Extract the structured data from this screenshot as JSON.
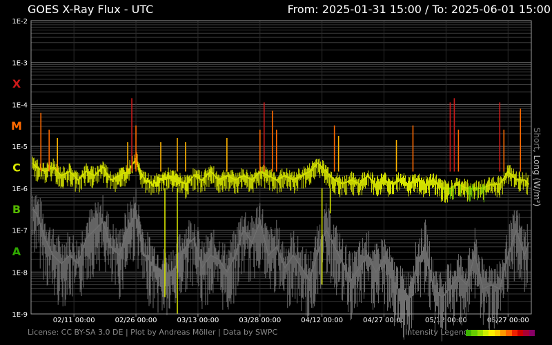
{
  "header": {
    "title": "GOES X-Ray Flux - UTC",
    "range": "From: 2025-01-31 15:00  /  To: 2025-06-01 15:00"
  },
  "right_axis": {
    "short": "Short",
    "rest": ", Long (W/m²)"
  },
  "footer": {
    "license": "License: CC BY-SA 3.0 DE | Plot by Andreas Möller | Data by SWPC",
    "legend_label": "Intensity Legend"
  },
  "legend_colors": [
    "#3cb300",
    "#66cc00",
    "#99dd00",
    "#ccee00",
    "#ffee00",
    "#ffcc00",
    "#ff9900",
    "#ff6600",
    "#ee2200",
    "#cc0000",
    "#aa0033",
    "#880066"
  ],
  "chart_data": {
    "type": "line",
    "title": "GOES X-Ray Flux - UTC",
    "ylabel": "Short, Long (W/m²)",
    "yscale": "log",
    "ylim": [
      1e-09,
      0.01
    ],
    "y_ticks": [
      "1E-9",
      "1E-8",
      "1E-7",
      "1E-6",
      "1E-5",
      "1E-4",
      "1E-3",
      "1E-2"
    ],
    "y_tick_values": [
      -9,
      -8,
      -7,
      -6,
      -5,
      -4,
      -3,
      -2
    ],
    "class_labels": [
      {
        "label": "X",
        "at": -3.5,
        "color": "#cc1a1a"
      },
      {
        "label": "M",
        "at": -4.5,
        "color": "#ff6a00"
      },
      {
        "label": "C",
        "at": -5.5,
        "color": "#d8e600"
      },
      {
        "label": "B",
        "at": -6.5,
        "color": "#55b800"
      },
      {
        "label": "A",
        "at": -7.5,
        "color": "#2fa800"
      }
    ],
    "xlim": [
      "2025-01-31 15:00",
      "2025-06-01 15:00"
    ],
    "x_ticks": [
      {
        "date": "2025-02-11",
        "label": "02/11 00:00"
      },
      {
        "date": "2025-02-26",
        "label": "02/26 00:00"
      },
      {
        "date": "2025-03-13",
        "label": "03/13 00:00"
      },
      {
        "date": "2025-03-28",
        "label": "03/28 00:00"
      },
      {
        "date": "2025-04-12",
        "label": "04/12 00:00"
      },
      {
        "date": "2025-04-27",
        "label": "04/27 00:00"
      },
      {
        "date": "2025-05-12",
        "label": "05/12 00:00"
      },
      {
        "date": "2025-05-27",
        "label": "05/27 00:00"
      }
    ],
    "series": [
      {
        "name": "Long",
        "x": [
          "2025-02-01",
          "2025-02-02",
          "2025-02-04",
          "2025-02-06",
          "2025-02-08",
          "2025-02-10",
          "2025-02-12",
          "2025-02-14",
          "2025-02-16",
          "2025-02-18",
          "2025-02-20",
          "2025-02-22",
          "2025-02-24",
          "2025-02-26",
          "2025-02-28",
          "2025-03-02",
          "2025-03-04",
          "2025-03-06",
          "2025-03-08",
          "2025-03-10",
          "2025-03-12",
          "2025-03-14",
          "2025-03-16",
          "2025-03-18",
          "2025-03-20",
          "2025-03-22",
          "2025-03-24",
          "2025-03-26",
          "2025-03-28",
          "2025-03-30",
          "2025-04-01",
          "2025-04-03",
          "2025-04-05",
          "2025-04-09",
          "2025-04-11",
          "2025-04-13",
          "2025-04-15",
          "2025-04-17",
          "2025-04-19",
          "2025-04-21",
          "2025-04-23",
          "2025-04-25",
          "2025-04-27",
          "2025-04-29",
          "2025-05-01",
          "2025-05-03",
          "2025-05-05",
          "2025-05-07",
          "2025-05-09",
          "2025-05-11",
          "2025-05-13",
          "2025-05-15",
          "2025-05-17",
          "2025-05-19",
          "2025-05-21",
          "2025-05-23",
          "2025-05-25",
          "2025-05-27",
          "2025-05-29",
          "2025-05-31",
          "2025-06-01"
        ],
        "log_y": [
          -5.4,
          -5.5,
          -5.6,
          -5.5,
          -5.7,
          -5.6,
          -5.8,
          -5.6,
          -5.7,
          -5.5,
          -5.8,
          -5.7,
          -5.6,
          -5.3,
          -5.8,
          -5.9,
          -5.8,
          -5.7,
          -5.8,
          -5.9,
          -5.7,
          -5.8,
          -5.6,
          -5.8,
          -5.7,
          -5.8,
          -5.7,
          -5.8,
          -5.6,
          -5.7,
          -5.8,
          -5.7,
          -5.8,
          -5.6,
          -5.4,
          -5.6,
          -5.8,
          -5.9,
          -5.8,
          -5.9,
          -5.7,
          -5.9,
          -5.8,
          -5.9,
          -5.8,
          -5.9,
          -5.8,
          -5.9,
          -5.8,
          -6.0,
          -6.0,
          -5.9,
          -6.0,
          -6.0,
          -6.0,
          -5.9,
          -5.9,
          -5.6,
          -5.8,
          -5.8,
          -5.9
        ]
      },
      {
        "name": "Short",
        "x": [
          "2025-02-01",
          "2025-02-02",
          "2025-02-04",
          "2025-02-06",
          "2025-02-08",
          "2025-02-10",
          "2025-02-12",
          "2025-02-14",
          "2025-02-16",
          "2025-02-18",
          "2025-02-20",
          "2025-02-22",
          "2025-02-24",
          "2025-02-26",
          "2025-02-28",
          "2025-03-02",
          "2025-03-04",
          "2025-03-06",
          "2025-03-08",
          "2025-03-10",
          "2025-03-12",
          "2025-03-14",
          "2025-03-16",
          "2025-03-18",
          "2025-03-20",
          "2025-03-22",
          "2025-03-24",
          "2025-03-26",
          "2025-03-28",
          "2025-03-30",
          "2025-04-01",
          "2025-04-03",
          "2025-04-05",
          "2025-04-09",
          "2025-04-11",
          "2025-04-13",
          "2025-04-15",
          "2025-04-17",
          "2025-04-19",
          "2025-04-21",
          "2025-04-23",
          "2025-04-25",
          "2025-04-27",
          "2025-04-29",
          "2025-05-01",
          "2025-05-03",
          "2025-05-05",
          "2025-05-07",
          "2025-05-09",
          "2025-05-11",
          "2025-05-13",
          "2025-05-15",
          "2025-05-17",
          "2025-05-19",
          "2025-05-21",
          "2025-05-23",
          "2025-05-25",
          "2025-05-27",
          "2025-05-29",
          "2025-05-31",
          "2025-06-01"
        ],
        "log_y": [
          -6.5,
          -6.6,
          -7.2,
          -7.6,
          -7.8,
          -7.6,
          -7.8,
          -7.2,
          -7.0,
          -6.8,
          -7.4,
          -7.6,
          -7.0,
          -6.6,
          -7.6,
          -7.8,
          -8.0,
          -8.1,
          -7.8,
          -7.4,
          -7.2,
          -7.9,
          -7.6,
          -7.7,
          -8.0,
          -7.6,
          -7.0,
          -7.3,
          -6.8,
          -7.6,
          -7.4,
          -7.9,
          -7.6,
          -8.2,
          -7.5,
          -7.0,
          -7.4,
          -7.8,
          -8.2,
          -7.9,
          -7.6,
          -8.0,
          -7.7,
          -8.2,
          -8.5,
          -8.6,
          -7.8,
          -7.4,
          -8.4,
          -8.6,
          -8.4,
          -8.1,
          -8.3,
          -7.6,
          -8.4,
          -8.3,
          -8.4,
          -7.6,
          -7.0,
          -7.6,
          -7.3
        ]
      }
    ],
    "flares": [
      {
        "x": "2025-02-03",
        "log_y": -4.2
      },
      {
        "x": "2025-02-05",
        "log_y": -4.6
      },
      {
        "x": "2025-02-07",
        "log_y": -4.8
      },
      {
        "x": "2025-02-24",
        "log_y": -4.9
      },
      {
        "x": "2025-02-25",
        "log_y": -3.85
      },
      {
        "x": "2025-02-26",
        "log_y": -4.5
      },
      {
        "x": "2025-03-04",
        "log_y": -4.9
      },
      {
        "x": "2025-03-08",
        "log_y": -4.8
      },
      {
        "x": "2025-03-10",
        "log_y": -4.9
      },
      {
        "x": "2025-03-20",
        "log_y": -4.8
      },
      {
        "x": "2025-03-28",
        "log_y": -4.6
      },
      {
        "x": "2025-03-29",
        "log_y": -3.95
      },
      {
        "x": "2025-03-31",
        "log_y": -4.15
      },
      {
        "x": "2025-04-01",
        "log_y": -4.6
      },
      {
        "x": "2025-04-15",
        "log_y": -4.5
      },
      {
        "x": "2025-04-16",
        "log_y": -4.75
      },
      {
        "x": "2025-04-30",
        "log_y": -4.85
      },
      {
        "x": "2025-05-04",
        "log_y": -4.5
      },
      {
        "x": "2025-05-13",
        "log_y": -3.95
      },
      {
        "x": "2025-05-14",
        "log_y": -3.85
      },
      {
        "x": "2025-05-15",
        "log_y": -4.6
      },
      {
        "x": "2025-05-25",
        "log_y": -3.95
      },
      {
        "x": "2025-05-26",
        "log_y": -4.6
      },
      {
        "x": "2025-05-30",
        "log_y": -4.1
      }
    ],
    "dropouts": [
      {
        "x": "2025-03-05",
        "log_y": -8.6
      },
      {
        "x": "2025-03-08",
        "log_y": -9.0
      },
      {
        "x": "2025-04-12",
        "log_y": -8.3
      },
      {
        "x": "2025-04-14",
        "log_y": -6.6
      }
    ]
  }
}
